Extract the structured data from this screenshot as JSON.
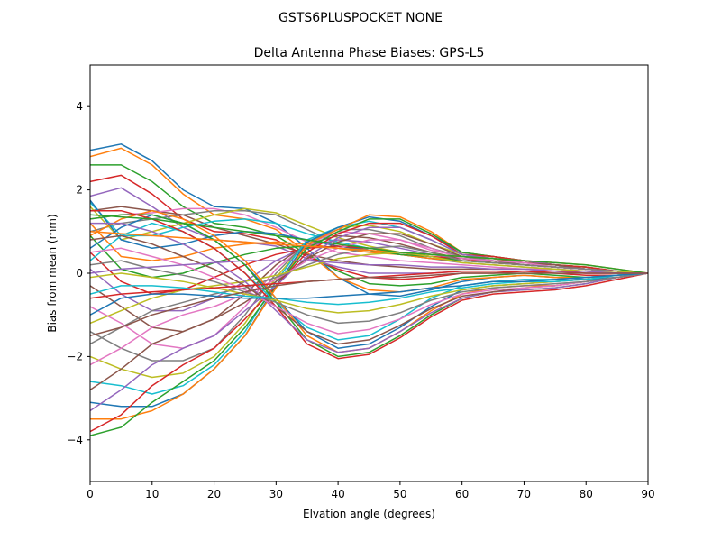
{
  "chart_data": {
    "type": "line",
    "suptitle": "GSTS6PLUSPOCKET NONE",
    "title": "Delta Antenna Phase Biases: GPS-L5",
    "xlabel": "Elvation angle (degrees)",
    "ylabel": "Bias from mean (mm)",
    "xlim": [
      0,
      90
    ],
    "ylim": [
      -5,
      5
    ],
    "xticks": [
      0,
      10,
      20,
      30,
      40,
      50,
      60,
      70,
      80,
      90
    ],
    "yticks": [
      -4,
      -2,
      0,
      2,
      4
    ],
    "grid": false,
    "legend": "none",
    "x": [
      0,
      5,
      10,
      15,
      20,
      25,
      30,
      35,
      40,
      45,
      50,
      55,
      60,
      65,
      70,
      75,
      80,
      85,
      90
    ],
    "colors": [
      "#1f77b4",
      "#ff7f0e",
      "#2ca02c",
      "#d62728",
      "#9467bd",
      "#8c564b",
      "#e377c2",
      "#7f7f7f",
      "#bcbd22",
      "#17becf"
    ],
    "series": [
      {
        "values": [
          2.95,
          3.1,
          2.7,
          2.0,
          1.6,
          1.55,
          1.2,
          0.6,
          -0.1,
          -0.5,
          -0.55,
          -0.4,
          -0.2,
          -0.1,
          -0.05,
          -0.1,
          -0.15,
          -0.1,
          0.0
        ]
      },
      {
        "values": [
          2.8,
          3.0,
          2.6,
          1.9,
          1.4,
          1.3,
          1.05,
          0.5,
          -0.1,
          -0.4,
          -0.45,
          -0.35,
          -0.15,
          -0.1,
          -0.05,
          -0.1,
          -0.1,
          -0.05,
          0.0
        ]
      },
      {
        "values": [
          2.6,
          2.6,
          2.2,
          1.6,
          1.2,
          1.1,
          0.9,
          0.45,
          0.05,
          -0.25,
          -0.3,
          -0.25,
          -0.1,
          -0.05,
          0.0,
          -0.05,
          -0.1,
          -0.05,
          0.0
        ]
      },
      {
        "values": [
          2.2,
          2.35,
          1.9,
          1.3,
          1.0,
          0.95,
          0.8,
          0.4,
          0.1,
          -0.1,
          -0.15,
          -0.1,
          0.0,
          0.0,
          0.05,
          0.0,
          -0.05,
          -0.05,
          0.0
        ]
      },
      {
        "values": [
          1.85,
          2.05,
          1.6,
          1.1,
          0.8,
          0.75,
          0.65,
          0.35,
          0.15,
          0.0,
          0.0,
          0.0,
          0.05,
          0.05,
          0.05,
          0.05,
          0.0,
          0.0,
          0.0
        ]
      },
      {
        "values": [
          1.5,
          1.6,
          1.5,
          1.4,
          1.1,
          0.9,
          0.7,
          0.45,
          0.3,
          0.2,
          0.15,
          0.1,
          0.1,
          0.1,
          0.1,
          0.05,
          0.05,
          0.0,
          0.0
        ]
      },
      {
        "values": [
          1.3,
          1.4,
          1.45,
          1.55,
          1.55,
          1.4,
          1.1,
          0.75,
          0.5,
          0.4,
          0.3,
          0.25,
          0.2,
          0.15,
          0.1,
          0.1,
          0.05,
          0.0,
          0.0
        ]
      },
      {
        "values": [
          1.0,
          1.2,
          1.3,
          1.4,
          1.5,
          1.5,
          1.4,
          1.05,
          0.7,
          0.55,
          0.45,
          0.35,
          0.25,
          0.2,
          0.15,
          0.1,
          0.05,
          0.05,
          0.0
        ]
      },
      {
        "values": [
          1.6,
          0.8,
          1.0,
          1.2,
          1.4,
          1.55,
          1.45,
          1.15,
          0.85,
          0.65,
          0.5,
          0.4,
          0.3,
          0.25,
          0.2,
          0.15,
          0.1,
          0.05,
          0.0
        ]
      },
      {
        "values": [
          1.7,
          0.9,
          0.9,
          1.1,
          1.25,
          1.3,
          1.2,
          0.95,
          0.75,
          0.6,
          0.5,
          0.4,
          0.3,
          0.25,
          0.2,
          0.15,
          0.1,
          0.05,
          0.0
        ]
      },
      {
        "values": [
          1.75,
          0.8,
          0.6,
          0.7,
          0.9,
          1.0,
          0.95,
          0.8,
          0.65,
          0.55,
          0.45,
          0.35,
          0.3,
          0.25,
          0.2,
          0.15,
          0.1,
          0.05,
          0.0
        ]
      },
      {
        "values": [
          1.2,
          0.4,
          0.3,
          0.4,
          0.6,
          0.7,
          0.75,
          0.7,
          0.6,
          0.5,
          0.45,
          0.35,
          0.3,
          0.25,
          0.2,
          0.15,
          0.1,
          0.05,
          0.0
        ]
      },
      {
        "values": [
          0.9,
          0.1,
          -0.1,
          0.0,
          0.25,
          0.45,
          0.6,
          0.65,
          0.6,
          0.55,
          0.45,
          0.4,
          0.3,
          0.25,
          0.2,
          0.15,
          0.1,
          0.05,
          0.0
        ]
      },
      {
        "values": [
          0.5,
          -0.2,
          -0.5,
          -0.4,
          -0.1,
          0.2,
          0.45,
          0.6,
          0.65,
          0.6,
          0.5,
          0.4,
          0.35,
          0.25,
          0.2,
          0.15,
          0.1,
          0.05,
          0.0
        ]
      },
      {
        "values": [
          0.1,
          -0.5,
          -0.9,
          -0.9,
          -0.6,
          -0.2,
          0.3,
          0.65,
          0.8,
          0.75,
          0.6,
          0.45,
          0.35,
          0.3,
          0.2,
          0.15,
          0.1,
          0.05,
          0.0
        ]
      },
      {
        "values": [
          -0.3,
          -0.8,
          -1.3,
          -1.4,
          -1.1,
          -0.5,
          0.2,
          0.7,
          0.9,
          0.85,
          0.7,
          0.5,
          0.35,
          0.3,
          0.2,
          0.15,
          0.1,
          0.05,
          0.0
        ]
      },
      {
        "values": [
          -0.8,
          -1.2,
          -1.7,
          -1.8,
          -1.5,
          -0.8,
          0.1,
          0.7,
          1.0,
          0.95,
          0.8,
          0.55,
          0.4,
          0.3,
          0.25,
          0.15,
          0.1,
          0.05,
          0.0
        ]
      },
      {
        "values": [
          -1.4,
          -1.8,
          -2.1,
          -2.1,
          -1.8,
          -1.0,
          0.0,
          0.75,
          1.05,
          1.05,
          0.9,
          0.6,
          0.4,
          0.3,
          0.25,
          0.2,
          0.1,
          0.05,
          0.0
        ]
      },
      {
        "values": [
          -2.0,
          -2.3,
          -2.5,
          -2.4,
          -2.0,
          -1.2,
          -0.1,
          0.75,
          1.1,
          1.15,
          1.0,
          0.7,
          0.45,
          0.35,
          0.25,
          0.2,
          0.1,
          0.05,
          0.0
        ]
      },
      {
        "values": [
          -2.6,
          -2.7,
          -2.9,
          -2.7,
          -2.2,
          -1.4,
          -0.2,
          0.8,
          1.1,
          1.25,
          1.1,
          0.8,
          0.45,
          0.35,
          0.3,
          0.2,
          0.1,
          0.05,
          0.0
        ]
      },
      {
        "values": [
          -3.1,
          -3.2,
          -3.2,
          -2.9,
          -2.3,
          -1.5,
          -0.3,
          0.75,
          1.1,
          1.35,
          1.25,
          0.9,
          0.5,
          0.4,
          0.3,
          0.2,
          0.15,
          0.05,
          0.0
        ]
      },
      {
        "values": [
          -3.5,
          -3.5,
          -3.3,
          -2.9,
          -2.3,
          -1.5,
          -0.35,
          0.7,
          1.05,
          1.4,
          1.35,
          1.0,
          0.5,
          0.4,
          0.3,
          0.2,
          0.15,
          0.05,
          0.0
        ]
      },
      {
        "values": [
          -3.9,
          -3.7,
          -3.1,
          -2.6,
          -2.1,
          -1.3,
          -0.3,
          0.6,
          1.0,
          1.3,
          1.3,
          0.95,
          0.5,
          0.4,
          0.3,
          0.2,
          0.15,
          0.05,
          0.0
        ]
      },
      {
        "values": [
          -3.8,
          -3.4,
          -2.7,
          -2.2,
          -1.8,
          -1.1,
          -0.3,
          0.5,
          0.95,
          1.2,
          1.2,
          0.9,
          0.45,
          0.4,
          0.3,
          0.2,
          0.15,
          0.05,
          0.0
        ]
      },
      {
        "values": [
          -3.3,
          -2.8,
          -2.2,
          -1.8,
          -1.5,
          -0.9,
          -0.3,
          0.4,
          0.85,
          1.1,
          1.1,
          0.8,
          0.45,
          0.35,
          0.3,
          0.2,
          0.1,
          0.05,
          0.0
        ]
      },
      {
        "values": [
          -2.8,
          -2.3,
          -1.7,
          -1.4,
          -1.1,
          -0.7,
          -0.2,
          0.35,
          0.75,
          0.95,
          0.95,
          0.7,
          0.4,
          0.35,
          0.25,
          0.2,
          0.1,
          0.05,
          0.0
        ]
      },
      {
        "values": [
          -2.2,
          -1.8,
          -1.3,
          -1.0,
          -0.8,
          -0.5,
          -0.15,
          0.3,
          0.6,
          0.8,
          0.8,
          0.6,
          0.35,
          0.3,
          0.25,
          0.15,
          0.1,
          0.05,
          0.0
        ]
      },
      {
        "values": [
          -1.7,
          -1.3,
          -0.9,
          -0.7,
          -0.5,
          -0.35,
          -0.1,
          0.2,
          0.45,
          0.6,
          0.65,
          0.5,
          0.3,
          0.25,
          0.2,
          0.15,
          0.1,
          0.05,
          0.0
        ]
      },
      {
        "values": [
          -1.2,
          -0.9,
          -0.6,
          -0.4,
          -0.3,
          -0.2,
          -0.05,
          0.15,
          0.35,
          0.45,
          0.5,
          0.4,
          0.25,
          0.2,
          0.15,
          0.1,
          0.05,
          0.05,
          0.0
        ]
      },
      {
        "values": [
          0.3,
          0.9,
          1.2,
          1.0,
          0.6,
          0.0,
          -0.7,
          -1.3,
          -1.6,
          -1.5,
          -1.1,
          -0.6,
          -0.3,
          -0.2,
          -0.15,
          -0.15,
          -0.1,
          -0.05,
          0.0
        ]
      },
      {
        "values": [
          0.6,
          1.1,
          1.4,
          1.2,
          0.8,
          0.2,
          -0.6,
          -1.4,
          -1.8,
          -1.7,
          -1.3,
          -0.8,
          -0.4,
          -0.3,
          -0.25,
          -0.2,
          -0.15,
          -0.1,
          0.0
        ]
      },
      {
        "values": [
          0.9,
          1.3,
          1.5,
          1.3,
          0.9,
          0.3,
          -0.6,
          -1.5,
          -1.9,
          -1.8,
          -1.4,
          -0.9,
          -0.5,
          -0.35,
          -0.3,
          -0.3,
          -0.2,
          -0.1,
          0.0
        ]
      },
      {
        "values": [
          1.3,
          1.4,
          1.4,
          1.2,
          0.8,
          0.2,
          -0.7,
          -1.6,
          -2.0,
          -1.9,
          -1.5,
          -1.0,
          -0.6,
          -0.45,
          -0.4,
          -0.35,
          -0.25,
          -0.1,
          0.0
        ]
      },
      {
        "values": [
          1.5,
          1.5,
          1.3,
          1.0,
          0.6,
          0.0,
          -0.8,
          -1.7,
          -2.05,
          -1.95,
          -1.55,
          -1.05,
          -0.65,
          -0.5,
          -0.45,
          -0.4,
          -0.3,
          -0.15,
          0.0
        ]
      },
      {
        "values": [
          1.2,
          1.2,
          1.0,
          0.7,
          0.3,
          -0.2,
          -0.9,
          -1.6,
          -1.9,
          -1.8,
          -1.4,
          -0.95,
          -0.6,
          -0.45,
          -0.4,
          -0.35,
          -0.25,
          -0.1,
          0.0
        ]
      },
      {
        "values": [
          0.8,
          0.9,
          0.7,
          0.4,
          0.1,
          -0.3,
          -0.8,
          -1.4,
          -1.7,
          -1.6,
          -1.25,
          -0.85,
          -0.55,
          -0.45,
          -0.35,
          -0.3,
          -0.2,
          -0.1,
          0.0
        ]
      },
      {
        "values": [
          0.5,
          0.6,
          0.4,
          0.2,
          -0.1,
          -0.4,
          -0.8,
          -1.2,
          -1.45,
          -1.35,
          -1.1,
          -0.75,
          -0.5,
          -0.4,
          -0.35,
          -0.3,
          -0.2,
          -0.1,
          0.0
        ]
      },
      {
        "values": [
          0.2,
          0.3,
          0.1,
          -0.05,
          -0.2,
          -0.45,
          -0.7,
          -1.0,
          -1.2,
          -1.15,
          -0.95,
          -0.65,
          -0.45,
          -0.35,
          -0.3,
          -0.25,
          -0.2,
          -0.1,
          0.0
        ]
      },
      {
        "values": [
          -0.1,
          0.0,
          -0.1,
          -0.2,
          -0.35,
          -0.5,
          -0.65,
          -0.85,
          -0.95,
          -0.9,
          -0.75,
          -0.55,
          -0.4,
          -0.3,
          -0.25,
          -0.2,
          -0.15,
          -0.05,
          0.0
        ]
      },
      {
        "values": [
          -0.5,
          -0.3,
          -0.3,
          -0.35,
          -0.45,
          -0.55,
          -0.6,
          -0.7,
          -0.75,
          -0.7,
          -0.6,
          -0.45,
          -0.35,
          -0.25,
          -0.2,
          -0.2,
          -0.15,
          -0.05,
          0.0
        ]
      },
      {
        "values": [
          -1.0,
          -0.6,
          -0.5,
          -0.5,
          -0.55,
          -0.6,
          -0.6,
          -0.6,
          -0.55,
          -0.5,
          -0.45,
          -0.35,
          -0.3,
          -0.2,
          -0.2,
          -0.15,
          -0.1,
          -0.05,
          0.0
        ]
      },
      {
        "values": [
          1.0,
          0.95,
          0.9,
          0.85,
          0.8,
          0.75,
          0.7,
          0.65,
          0.6,
          0.55,
          0.5,
          0.45,
          0.4,
          0.35,
          0.3,
          0.25,
          0.2,
          0.1,
          0.0
        ]
      },
      {
        "values": [
          1.4,
          1.35,
          1.3,
          1.2,
          1.1,
          1.0,
          0.9,
          0.8,
          0.7,
          0.6,
          0.5,
          0.45,
          0.4,
          0.35,
          0.3,
          0.25,
          0.2,
          0.1,
          0.0
        ]
      },
      {
        "values": [
          -0.6,
          -0.5,
          -0.45,
          -0.4,
          -0.35,
          -0.3,
          -0.25,
          -0.2,
          -0.15,
          -0.1,
          -0.05,
          0.0,
          0.05,
          0.05,
          0.05,
          0.05,
          0.0,
          0.0,
          0.0
        ]
      },
      {
        "values": [
          0.0,
          0.1,
          0.15,
          0.2,
          0.25,
          0.3,
          0.3,
          0.3,
          0.25,
          0.2,
          0.2,
          0.15,
          0.15,
          0.1,
          0.1,
          0.05,
          0.05,
          0.0,
          0.0
        ]
      },
      {
        "values": [
          -1.5,
          -1.3,
          -1.0,
          -0.8,
          -0.6,
          -0.45,
          -0.3,
          -0.2,
          -0.15,
          -0.1,
          -0.1,
          -0.05,
          0.0,
          0.0,
          0.0,
          0.0,
          0.0,
          0.0,
          0.0
        ]
      }
    ]
  }
}
